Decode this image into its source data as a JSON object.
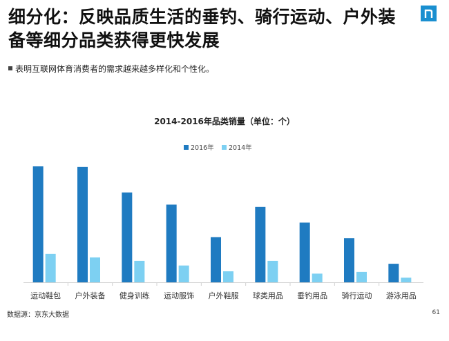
{
  "header": {
    "title": "细分化：反映品质生活的垂钓、骑行运动、户外装备等细分品类获得更快发展",
    "bullet": "表明互联网体育消费者的需求越来越多样化和个性化。"
  },
  "footer": {
    "source": "数据源：京东大数据",
    "page": "61"
  },
  "colors": {
    "s2016": "#1f7bc1",
    "s2014": "#7dd0f2",
    "axis": "#d0d0d0",
    "logo": "#1a8fd0"
  },
  "logo_icon": "n-letter-icon",
  "chart_data": {
    "type": "bar",
    "title": "2014-2016年品类销量（单位：个）",
    "xlabel": "",
    "ylabel": "",
    "legend": "top-center",
    "grid": false,
    "ylim": [
      0,
      100
    ],
    "categories": [
      "运动鞋包",
      "户外装备",
      "健身训练",
      "运动服饰",
      "户外鞋服",
      "球类用品",
      "垂钓用品",
      "骑行运动",
      "游泳用品"
    ],
    "series": [
      {
        "name": "2016年",
        "values": [
          100,
          99.5,
          77.5,
          67,
          39,
          65,
          51.5,
          38,
          16
        ]
      },
      {
        "name": "2014年",
        "values": [
          24.5,
          21.5,
          18.5,
          14.5,
          9.5,
          18.5,
          7.5,
          9,
          4
        ]
      }
    ]
  }
}
